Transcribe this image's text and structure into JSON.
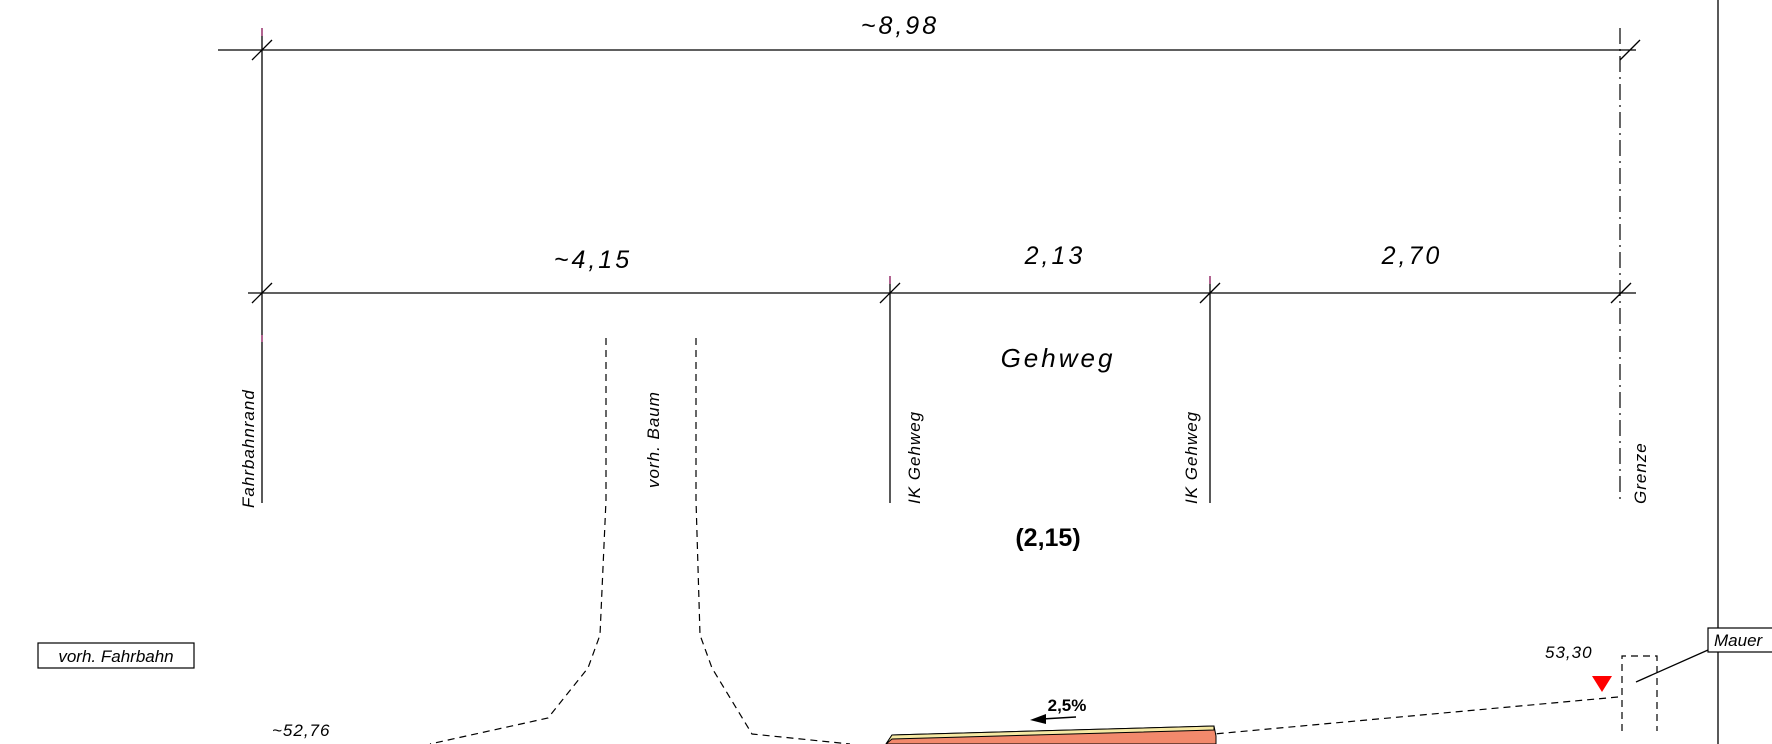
{
  "dimensions": {
    "overall": "~8,98",
    "segment_1": "~4,15",
    "segment_2": "2,13",
    "segment_3": "2,70"
  },
  "labels": {
    "gehweg": "Gehweg",
    "gehweg_width": "(2,15)",
    "fahrbahnrand": "Fahrbahnrand",
    "baum": "vorh. Baum",
    "ik_gehweg_1": "IK Gehweg",
    "ik_gehweg_2": "IK Gehweg",
    "grenze": "Grenze",
    "vorh_fahrbahn": "vorh. Fahrbahn",
    "mauer": "Mauer",
    "slope": "2,5%"
  },
  "elevations": {
    "left": "~52,76",
    "right": "53,30"
  },
  "colors": {
    "line": "#000000",
    "tick_accent": "#b0307a",
    "surface_fill": "#f2896c",
    "surface_top": "#f6e9a4",
    "marker": "#ff0000"
  }
}
